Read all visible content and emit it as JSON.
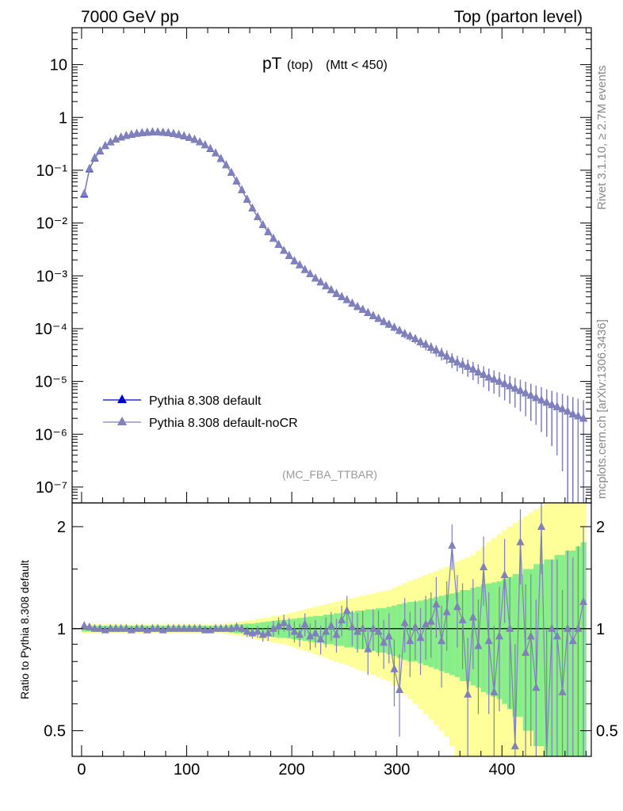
{
  "header": {
    "left": "7000 GeV pp",
    "right": "Top (parton level)"
  },
  "plot_title": {
    "main": "pT",
    "sub1": "(top)",
    "sub2": "(Mtt < 450)"
  },
  "side_labels": {
    "rivet": "Rivet 3.1.10, ≥ 2.7M events",
    "mcplots": "mcplots.cern.ch [arXiv:1306.3436]"
  },
  "analysis_tag": "(MC_FBA_TTBAR)",
  "legend": [
    {
      "label": "Pythia 8.308 default",
      "color": "#0000cc"
    },
    {
      "label": "Pythia 8.308 default-noCR",
      "color": "#8080bb"
    }
  ],
  "ratio_ylabel": "Ratio to Pythia 8.308 default",
  "colors": {
    "default": "#0000cc",
    "nocr": "#8080bb",
    "band_outer": "#ffff99",
    "band_inner": "#88ee88"
  },
  "chart_data": [
    {
      "type": "line",
      "yscale": "log",
      "xlim": [
        -9,
        485
      ],
      "ylim": [
        5e-08,
        50
      ],
      "ytick_labels": [
        "10",
        "1",
        "10⁻¹",
        "10⁻²",
        "10⁻³",
        "10⁻⁴",
        "10⁻⁵",
        "10⁻⁶",
        "10⁻⁷"
      ],
      "x": [
        2.5,
        7.5,
        12.5,
        17.5,
        22.5,
        27.5,
        32.5,
        37.5,
        42.5,
        47.5,
        52.5,
        57.5,
        62.5,
        67.5,
        72.5,
        77.5,
        82.5,
        87.5,
        92.5,
        97.5,
        102.5,
        107.5,
        112.5,
        117.5,
        122.5,
        127.5,
        132.5,
        137.5,
        142.5,
        147.5,
        152.5,
        157.5,
        162.5,
        167.5,
        172.5,
        177.5,
        182.5,
        187.5,
        192.5,
        197.5,
        202.5,
        207.5,
        212.5,
        217.5,
        222.5,
        227.5,
        232.5,
        237.5,
        242.5,
        247.5,
        252.5,
        257.5,
        262.5,
        267.5,
        272.5,
        277.5,
        282.5,
        287.5,
        292.5,
        297.5,
        302.5,
        307.5,
        312.5,
        317.5,
        322.5,
        327.5,
        332.5,
        337.5,
        342.5,
        347.5,
        352.5,
        357.5,
        362.5,
        367.5,
        372.5,
        377.5,
        382.5,
        387.5,
        392.5,
        397.5,
        402.5,
        407.5,
        412.5,
        417.5,
        422.5,
        427.5,
        432.5,
        437.5,
        442.5,
        447.5,
        452.5,
        457.5,
        462.5,
        467.5,
        472.5,
        477.5
      ],
      "series": [
        {
          "name": "Pythia 8.308 default",
          "values": [
            0.035,
            0.105,
            0.17,
            0.23,
            0.29,
            0.34,
            0.385,
            0.42,
            0.45,
            0.475,
            0.495,
            0.51,
            0.52,
            0.525,
            0.525,
            0.52,
            0.51,
            0.49,
            0.47,
            0.445,
            0.415,
            0.38,
            0.34,
            0.3,
            0.255,
            0.21,
            0.165,
            0.125,
            0.09,
            0.062,
            0.042,
            0.028,
            0.019,
            0.013,
            0.0092,
            0.0068,
            0.0051,
            0.0039,
            0.003,
            0.0024,
            0.0019,
            0.0016,
            0.0013,
            0.00108,
            0.0009,
            0.00076,
            0.00064,
            0.00054,
            0.00046,
            0.0004,
            0.00035,
            0.0003,
            0.00026,
            0.00023,
            0.0002,
            0.000175,
            0.000155,
            0.000135,
            0.00012,
            0.000105,
            9.2e-05,
            8e-05,
            7.2e-05,
            6.4e-05,
            5.6e-05,
            5e-05,
            4.4e-05,
            3.9e-05,
            3.4e-05,
            3e-05,
            2.6e-05,
            2.3e-05,
            2.1e-05,
            1.9e-05,
            1.7e-05,
            1.5e-05,
            1.35e-05,
            1.2e-05,
            1.1e-05,
            1e-05,
            9e-06,
            8.2e-06,
            7.4e-06,
            6.7e-06,
            6e-06,
            5.4e-06,
            4.9e-06,
            4.4e-06,
            4e-06,
            3.6e-06,
            3.3e-06,
            3e-06,
            2.7e-06,
            2.4e-06,
            2.2e-06,
            2e-06
          ],
          "errors": [
            0.0004,
            0.0008,
            0.001,
            0.0012,
            0.0013,
            0.0014,
            0.0015,
            0.0016,
            0.0016,
            0.0017,
            0.0017,
            0.0017,
            0.0018,
            0.0018,
            0.0018,
            0.0018,
            0.0017,
            0.0017,
            0.0017,
            0.0016,
            0.0016,
            0.0015,
            0.0014,
            0.0013,
            0.0012,
            0.0011,
            0.001,
            0.0008,
            0.0007,
            0.0006,
            0.0005,
            0.0004,
            0.0003,
            0.00025,
            0.0002,
            0.00017,
            0.00014,
            0.00012,
            0.0001,
            9e-05,
            8e-05,
            7e-05,
            6e-05,
            5.5e-05,
            5e-05,
            4.5e-05,
            4e-05,
            3.7e-05,
            3.4e-05,
            3.1e-05,
            2.9e-05,
            2.6e-05,
            2.4e-05,
            2.3e-05,
            2.1e-05,
            2e-05,
            1.9e-05,
            1.8e-05,
            1.7e-05,
            1.6e-05,
            1.5e-05,
            1.4e-05,
            1.3e-05,
            1.2e-05,
            1.15e-05,
            1.1e-05,
            1e-05,
            9.5e-06,
            9e-06,
            8.5e-06,
            8e-06,
            7.5e-06,
            7e-06,
            6.7e-06,
            6.4e-06,
            6e-06,
            5.7e-06,
            5.4e-06,
            5.1e-06,
            4.9e-06,
            4.6e-06,
            4.4e-06,
            4.2e-06,
            4e-06,
            3.8e-06,
            3.6e-06,
            3.4e-06,
            3.3e-06,
            3.1e-06,
            3e-06,
            2.9e-06,
            2.8e-06,
            2.7e-06,
            2.6e-06,
            2.5e-06,
            2.4e-06
          ]
        },
        {
          "name": "Pythia 8.308 default-noCR",
          "values": [
            0.036,
            0.108,
            0.173,
            0.232,
            0.29,
            0.338,
            0.384,
            0.418,
            0.448,
            0.474,
            0.494,
            0.508,
            0.518,
            0.523,
            0.523,
            0.518,
            0.508,
            0.489,
            0.469,
            0.444,
            0.414,
            0.38,
            0.34,
            0.3,
            0.256,
            0.21,
            0.165,
            0.125,
            0.09,
            0.062,
            0.042,
            0.028,
            0.019,
            0.013,
            0.0092,
            0.0068,
            0.0051,
            0.0039,
            0.003,
            0.0024,
            0.0019,
            0.0016,
            0.0013,
            0.00108,
            0.0009,
            0.00076,
            0.00064,
            0.00054,
            0.00046,
            0.0004,
            0.00035,
            0.0003,
            0.00026,
            0.00023,
            0.0002,
            0.000175,
            0.000155,
            0.000135,
            0.00012,
            0.000105,
            9.2e-05,
            8e-05,
            7.2e-05,
            6.4e-05,
            5.6e-05,
            5e-05,
            4.4e-05,
            3.9e-05,
            3.4e-05,
            3e-05,
            2.6e-05,
            2.3e-05,
            2.1e-05,
            1.9e-05,
            1.7e-05,
            1.5e-05,
            1.35e-05,
            1.2e-05,
            1.1e-05,
            1e-05,
            9e-06,
            8.2e-06,
            7.4e-06,
            6.7e-06,
            6e-06,
            5.4e-06,
            4.9e-06,
            4.4e-06,
            4e-06,
            3.6e-06,
            3.3e-06,
            3e-06,
            2.7e-06,
            2.4e-06,
            2.2e-06,
            2e-06
          ],
          "errors": [
            0.0004,
            0.0008,
            0.001,
            0.0012,
            0.0013,
            0.0014,
            0.0015,
            0.0016,
            0.0016,
            0.0017,
            0.0017,
            0.0017,
            0.0018,
            0.0018,
            0.0018,
            0.0018,
            0.0017,
            0.0017,
            0.0017,
            0.0016,
            0.0016,
            0.0015,
            0.0014,
            0.0013,
            0.0012,
            0.0011,
            0.001,
            0.0008,
            0.0007,
            0.0006,
            0.0005,
            0.0004,
            0.0003,
            0.00025,
            0.0002,
            0.00017,
            0.00014,
            0.00012,
            0.0001,
            9e-05,
            8e-05,
            7e-05,
            6e-05,
            5.5e-05,
            5e-05,
            4.5e-05,
            4e-05,
            3.7e-05,
            3.4e-05,
            3.1e-05,
            2.9e-05,
            2.6e-05,
            2.4e-05,
            2.3e-05,
            2.1e-05,
            2e-05,
            1.9e-05,
            1.8e-05,
            1.7e-05,
            1.6e-05,
            1.5e-05,
            1.4e-05,
            1.3e-05,
            1.2e-05,
            1.15e-05,
            1.1e-05,
            1e-05,
            9.5e-06,
            9e-06,
            8.5e-06,
            8e-06,
            7.5e-06,
            7e-06,
            6.7e-06,
            6.4e-06,
            6e-06,
            5.7e-06,
            5.4e-06,
            5.1e-06,
            4.9e-06,
            4.6e-06,
            4.4e-06,
            4.2e-06,
            4e-06,
            3.8e-06,
            3.6e-06,
            3.4e-06,
            3.3e-06,
            3.1e-06,
            3e-06,
            2.9e-06,
            2.8e-06,
            2.7e-06,
            2.6e-06,
            2.5e-06,
            2.4e-06
          ]
        }
      ]
    },
    {
      "type": "line",
      "yscale": "log",
      "xlim": [
        -9,
        485
      ],
      "ylim": [
        0.42,
        2.35
      ],
      "yticks": [
        0.5,
        1,
        2
      ],
      "xticks": [
        0,
        100,
        200,
        300,
        400
      ],
      "reference_line": 1,
      "x": [
        2.5,
        7.5,
        12.5,
        17.5,
        22.5,
        27.5,
        32.5,
        37.5,
        42.5,
        47.5,
        52.5,
        57.5,
        62.5,
        67.5,
        72.5,
        77.5,
        82.5,
        87.5,
        92.5,
        97.5,
        102.5,
        107.5,
        112.5,
        117.5,
        122.5,
        127.5,
        132.5,
        137.5,
        142.5,
        147.5,
        152.5,
        157.5,
        162.5,
        167.5,
        172.5,
        177.5,
        182.5,
        187.5,
        192.5,
        197.5,
        202.5,
        207.5,
        212.5,
        217.5,
        222.5,
        227.5,
        232.5,
        237.5,
        242.5,
        247.5,
        252.5,
        257.5,
        262.5,
        267.5,
        272.5,
        277.5,
        282.5,
        287.5,
        292.5,
        297.5,
        302.5,
        307.5,
        312.5,
        317.5,
        322.5,
        327.5,
        332.5,
        337.5,
        342.5,
        347.5,
        352.5,
        357.5,
        362.5,
        367.5,
        372.5,
        377.5,
        382.5,
        387.5,
        392.5,
        397.5,
        402.5,
        407.5,
        412.5,
        417.5,
        422.5,
        427.5,
        432.5,
        437.5,
        442.5,
        447.5,
        452.5,
        457.5,
        462.5,
        467.5,
        472.5,
        477.5
      ],
      "bands": {
        "inner": [
          0.02,
          0.02,
          0.02,
          0.02,
          0.02,
          0.02,
          0.02,
          0.02,
          0.02,
          0.02,
          0.02,
          0.02,
          0.02,
          0.02,
          0.02,
          0.02,
          0.02,
          0.02,
          0.02,
          0.02,
          0.02,
          0.02,
          0.02,
          0.02,
          0.02,
          0.02,
          0.02,
          0.02,
          0.025,
          0.03,
          0.03,
          0.035,
          0.035,
          0.04,
          0.045,
          0.05,
          0.055,
          0.06,
          0.06,
          0.065,
          0.07,
          0.075,
          0.08,
          0.085,
          0.09,
          0.09,
          0.1,
          0.1,
          0.11,
          0.11,
          0.12,
          0.12,
          0.13,
          0.13,
          0.14,
          0.14,
          0.15,
          0.15,
          0.16,
          0.17,
          0.18,
          0.19,
          0.2,
          0.2,
          0.21,
          0.22,
          0.23,
          0.24,
          0.25,
          0.26,
          0.27,
          0.28,
          0.3,
          0.3,
          0.32,
          0.33,
          0.35,
          0.36,
          0.37,
          0.38,
          0.4,
          0.42,
          0.45,
          0.45,
          0.5,
          0.5,
          0.55,
          0.55,
          0.6,
          0.6,
          0.65,
          0.65,
          0.7,
          0.7,
          0.75,
          0.8
        ],
        "outer": [
          0.03,
          0.03,
          0.03,
          0.03,
          0.03,
          0.03,
          0.03,
          0.03,
          0.03,
          0.03,
          0.03,
          0.03,
          0.03,
          0.03,
          0.03,
          0.03,
          0.03,
          0.03,
          0.03,
          0.03,
          0.03,
          0.03,
          0.03,
          0.03,
          0.03,
          0.03,
          0.03,
          0.035,
          0.04,
          0.045,
          0.05,
          0.055,
          0.06,
          0.07,
          0.075,
          0.08,
          0.09,
          0.095,
          0.1,
          0.11,
          0.12,
          0.13,
          0.14,
          0.15,
          0.16,
          0.17,
          0.18,
          0.19,
          0.2,
          0.21,
          0.22,
          0.23,
          0.24,
          0.25,
          0.26,
          0.27,
          0.28,
          0.29,
          0.3,
          0.32,
          0.34,
          0.36,
          0.38,
          0.4,
          0.42,
          0.44,
          0.46,
          0.48,
          0.5,
          0.52,
          0.55,
          0.58,
          0.6,
          0.62,
          0.65,
          0.7,
          0.75,
          0.8,
          0.85,
          0.9,
          0.95,
          1.0,
          1.05,
          1.1,
          1.15,
          1.2,
          1.25,
          1.3,
          1.35,
          1.4,
          1.45,
          1.5,
          1.55,
          1.6,
          1.65,
          1.7
        ]
      },
      "series": [
        {
          "name": "Pythia 8.308 default-noCR",
          "values": [
            1.02,
            1.01,
            1.0,
            1.0,
            0.99,
            1.0,
            1.0,
            1.0,
            1.0,
            0.99,
            1.0,
            1.0,
            0.99,
            1.0,
            1.0,
            0.99,
            1.0,
            1.0,
            1.0,
            1.0,
            1.0,
            1.0,
            1.0,
            0.99,
            0.99,
            1.0,
            1.0,
            1.0,
            1.0,
            1.01,
            1.0,
            0.98,
            0.97,
            0.98,
            0.96,
            0.97,
            1.0,
            1.02,
            1.04,
            1.01,
            0.98,
            0.96,
            1.03,
            0.95,
            0.97,
            0.93,
            0.98,
            1.02,
            0.96,
            1.06,
            1.13,
            1.01,
            0.98,
            1.0,
            0.87,
            1.0,
            0.98,
            0.91,
            0.95,
            0.76,
            0.66,
            1.04,
            0.92,
            1.01,
            0.94,
            1.03,
            1.05,
            1.18,
            0.92,
            1.12,
            1.76,
            1.16,
            1.06,
            0.64,
            1.08,
            0.89,
            1.52,
            0.92,
            0.65,
            0.95,
            1.44,
            1.0,
            0.45,
            1.8,
            0.85,
            0.95,
            0.67,
            2.0,
            0.4,
            1.0,
            0.95,
            0.65,
            1.0,
            0.92,
            1.0,
            1.2
          ],
          "errors": [
            0.02,
            0.02,
            0.02,
            0.02,
            0.02,
            0.02,
            0.02,
            0.02,
            0.02,
            0.02,
            0.02,
            0.02,
            0.02,
            0.02,
            0.02,
            0.02,
            0.02,
            0.02,
            0.02,
            0.02,
            0.02,
            0.02,
            0.02,
            0.02,
            0.02,
            0.02,
            0.02,
            0.02,
            0.025,
            0.03,
            0.03,
            0.035,
            0.035,
            0.04,
            0.045,
            0.05,
            0.055,
            0.06,
            0.06,
            0.065,
            0.07,
            0.075,
            0.08,
            0.085,
            0.09,
            0.09,
            0.1,
            0.1,
            0.11,
            0.11,
            0.12,
            0.12,
            0.13,
            0.13,
            0.14,
            0.14,
            0.15,
            0.15,
            0.16,
            0.17,
            0.18,
            0.19,
            0.2,
            0.2,
            0.21,
            0.22,
            0.23,
            0.24,
            0.25,
            0.26,
            0.27,
            0.28,
            0.3,
            0.3,
            0.32,
            0.33,
            0.35,
            0.36,
            0.37,
            0.38,
            0.4,
            0.42,
            0.45,
            0.45,
            0.5,
            0.5,
            0.55,
            0.55,
            0.6,
            0.6,
            0.65,
            0.65,
            0.7,
            0.7,
            0.75,
            0.8
          ]
        }
      ]
    }
  ]
}
